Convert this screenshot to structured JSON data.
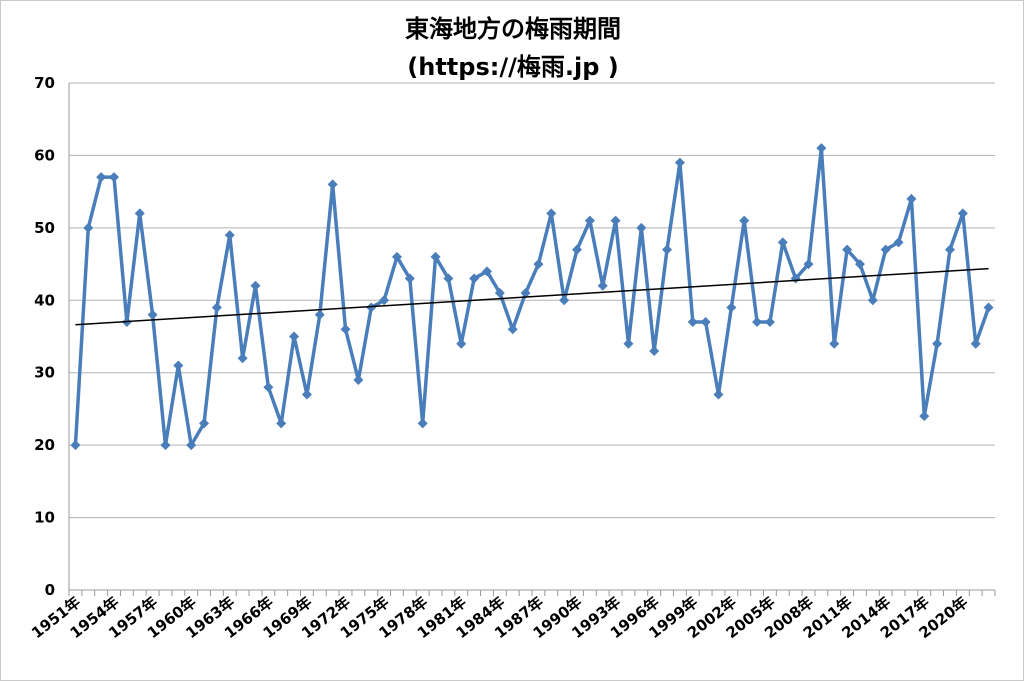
{
  "chart_data": {
    "type": "line",
    "title": "東海地方の梅雨期間",
    "subtitle": "(https://梅雨.jp )",
    "xlabel": "",
    "ylabel": "",
    "ylim": [
      0,
      70
    ],
    "yticks": [
      "0",
      "10",
      "20",
      "30",
      "40",
      "50",
      "60",
      "70"
    ],
    "grid": true,
    "legend": "none",
    "trendline": "linear",
    "x": [
      1951,
      1952,
      1953,
      1954,
      1955,
      1956,
      1957,
      1958,
      1959,
      1960,
      1961,
      1962,
      1963,
      1964,
      1965,
      1966,
      1967,
      1968,
      1969,
      1970,
      1971,
      1972,
      1973,
      1974,
      1975,
      1976,
      1977,
      1978,
      1979,
      1980,
      1981,
      1982,
      1983,
      1984,
      1985,
      1986,
      1987,
      1988,
      1989,
      1990,
      1991,
      1992,
      1993,
      1994,
      1995,
      1996,
      1997,
      1998,
      1999,
      2000,
      2001,
      2002,
      2003,
      2004,
      2005,
      2006,
      2007,
      2008,
      2009,
      2010,
      2011,
      2012,
      2013,
      2014,
      2015,
      2016,
      2017,
      2018,
      2019,
      2020,
      2021,
      2022
    ],
    "xtick_labels": [
      "1951年",
      "1954年",
      "1957年",
      "1960年",
      "1963年",
      "1966年",
      "1969年",
      "1972年",
      "1975年",
      "1978年",
      "1981年",
      "1984年",
      "1987年",
      "1990年",
      "1993年",
      "1996年",
      "1999年",
      "2002年",
      "2005年",
      "2008年",
      "2011年",
      "2014年",
      "2017年",
      "2020年"
    ],
    "values": [
      20,
      50,
      57,
      57,
      37,
      52,
      38,
      20,
      31,
      20,
      23,
      39,
      49,
      32,
      42,
      28,
      23,
      35,
      27,
      38,
      56,
      36,
      29,
      39,
      40,
      46,
      43,
      23,
      46,
      43,
      34,
      43,
      44,
      41,
      36,
      41,
      45,
      52,
      40,
      47,
      51,
      42,
      51,
      34,
      50,
      33,
      47,
      59,
      37,
      37,
      27,
      39,
      51,
      37,
      37,
      48,
      43,
      45,
      61,
      34,
      47,
      45,
      40,
      47,
      48,
      54,
      24,
      34,
      47,
      52,
      34,
      39
    ],
    "colors": {
      "series": "#4a7ebb",
      "trend": "#000000",
      "grid": "#b3b3b3"
    }
  }
}
